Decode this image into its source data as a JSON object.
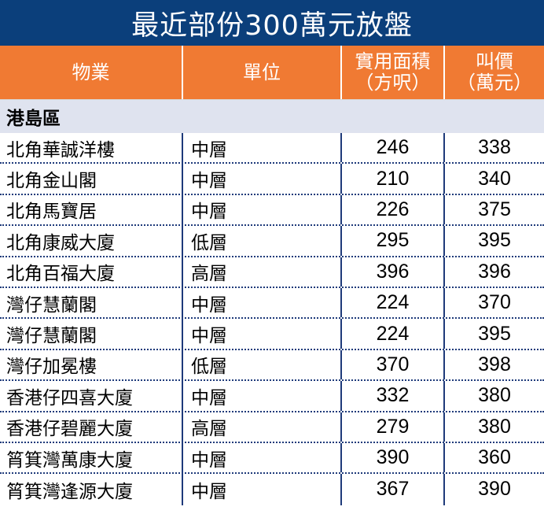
{
  "title": "最近部份300萬元放盤",
  "header": {
    "col1": "物業",
    "col2": "單位",
    "col3_line1": "實用面積",
    "col3_line2": "（方呎）",
    "col4_line1": "叫價",
    "col4_line2": "（萬元）"
  },
  "section": {
    "label": "港島區"
  },
  "rows": [
    {
      "property": "北角華誠洋樓",
      "unit": "中層",
      "area": "246",
      "price": "338"
    },
    {
      "property": "北角金山閣",
      "unit": "中層",
      "area": "210",
      "price": "340"
    },
    {
      "property": "北角馬寶居",
      "unit": "中層",
      "area": "226",
      "price": "375"
    },
    {
      "property": "北角康威大廈",
      "unit": "低層",
      "area": "295",
      "price": "395"
    },
    {
      "property": "北角百福大廈",
      "unit": "高層",
      "area": "396",
      "price": "396"
    },
    {
      "property": "灣仔慧蘭閣",
      "unit": "中層",
      "area": "224",
      "price": "370"
    },
    {
      "property": "灣仔慧蘭閣",
      "unit": "中層",
      "area": "224",
      "price": "395"
    },
    {
      "property": "灣仔加冕樓",
      "unit": "低層",
      "area": "370",
      "price": "398"
    },
    {
      "property": "香港仔四喜大廈",
      "unit": "中層",
      "area": "332",
      "price": "380"
    },
    {
      "property": "香港仔碧麗大廈",
      "unit": "高層",
      "area": "279",
      "price": "380"
    },
    {
      "property": "筲箕灣萬康大廈",
      "unit": "中層",
      "area": "390",
      "price": "360"
    },
    {
      "property": "筲箕灣逢源大廈",
      "unit": "中層",
      "area": "367",
      "price": "390"
    }
  ],
  "colors": {
    "title_bg": "#0b3f7b",
    "header_bg": "#f07a33",
    "section_bg": "#dfe3ef",
    "rule": "#1e3a7a"
  }
}
